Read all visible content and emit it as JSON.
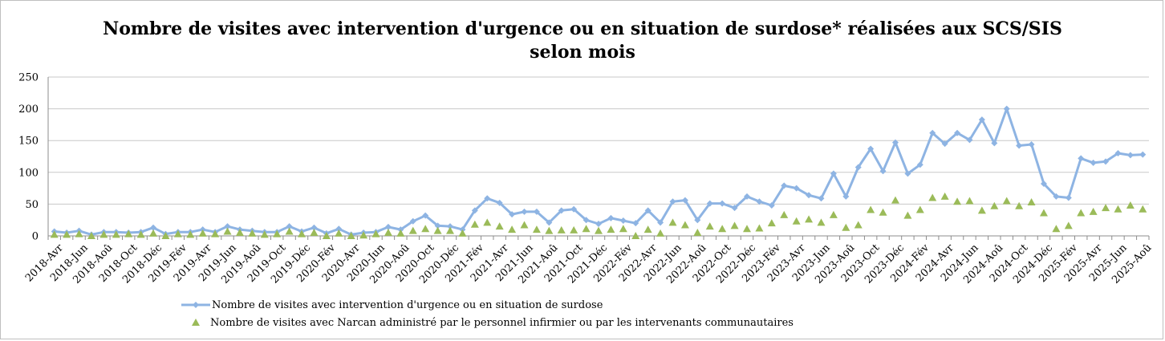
{
  "chart_data": {
    "type": "line",
    "title_line1": "Nombre de visites avec intervention d'urgence ou en situation de surdose* réalisées aux SCS/SIS",
    "title_line2": "selon mois",
    "ylim": [
      0,
      250
    ],
    "yticks": [
      "0",
      "50",
      "100",
      "150",
      "200",
      "250"
    ],
    "grid": true,
    "legend_position": "bottom",
    "x_tick_labels": [
      "2018-Avr",
      "2018-Jun",
      "2018-Aoû",
      "2018-Oct",
      "2018-Déc",
      "2019-Fév",
      "2019-Avr",
      "2019-Jun",
      "2019-Aoû",
      "2019-Oct",
      "2019-Déc",
      "2020-Fév",
      "2020-Avr",
      "2020-Jun",
      "2020-Aoû",
      "2020-Oct",
      "2020-Déc",
      "2021-Fév",
      "2021-Avr",
      "2021-Jun",
      "2021-Aoû",
      "2021-Oct",
      "2021-Déc",
      "2022-Fév",
      "2022-Avr",
      "2022-Jun",
      "2022-Aoû",
      "2022-Oct",
      "2022-Déc",
      "2023-Fév",
      "2023-Avr",
      "2023-Jun",
      "2023-Aoû",
      "2023-Oct",
      "2023-Déc",
      "2024-Fév",
      "2024-Avr",
      "2024-Jun",
      "2024-Aoû",
      "2024-Oct",
      "2024-Déc",
      "2025-Fév",
      "2025-Avr",
      "2025-Jun",
      "2025-Aoû"
    ],
    "series": [
      {
        "name": "Nombre de visites avec intervention d'urgence ou en situation de surdose",
        "color": "#8eb4e3",
        "marker": "diamond",
        "values": [
          7,
          5,
          8,
          2,
          6,
          6,
          5,
          6,
          13,
          3,
          6,
          6,
          10,
          6,
          15,
          10,
          8,
          6,
          6,
          15,
          7,
          13,
          4,
          11,
          2,
          5,
          6,
          14,
          10,
          23,
          32,
          16,
          15,
          10,
          40,
          59,
          52,
          34,
          38,
          38,
          21,
          40,
          42,
          25,
          19,
          28,
          24,
          20,
          40,
          21,
          54,
          56,
          25,
          51,
          51,
          44,
          62,
          54,
          48,
          79,
          75,
          64,
          59,
          98,
          62,
          108,
          137,
          102,
          147,
          98,
          112,
          162,
          145,
          162,
          151,
          183,
          146,
          200,
          142,
          144,
          82,
          62,
          60,
          122,
          115,
          117,
          130,
          127,
          128
        ]
      },
      {
        "name": "Nombre de visites avec Narcan administré par le personnel infirmier ou par les intervenants communautaires",
        "color": "#9bbb59",
        "marker": "triangle",
        "values": [
          2,
          2,
          3,
          0,
          2,
          2,
          3,
          2,
          4,
          0,
          3,
          2,
          4,
          3,
          7,
          5,
          4,
          2,
          3,
          7,
          3,
          5,
          0,
          4,
          0,
          1,
          3,
          5,
          4,
          8,
          11,
          8,
          8,
          4,
          18,
          21,
          15,
          10,
          17,
          10,
          8,
          9,
          9,
          11,
          8,
          10,
          11,
          0,
          10,
          4,
          21,
          17,
          5,
          15,
          11,
          16,
          11,
          12,
          20,
          33,
          23,
          26,
          21,
          33,
          13,
          17,
          41,
          37,
          56,
          32,
          41,
          60,
          62,
          54,
          55,
          40,
          47,
          55,
          47,
          53,
          36,
          11,
          16,
          36,
          38,
          44,
          42,
          48,
          42
        ]
      }
    ]
  }
}
